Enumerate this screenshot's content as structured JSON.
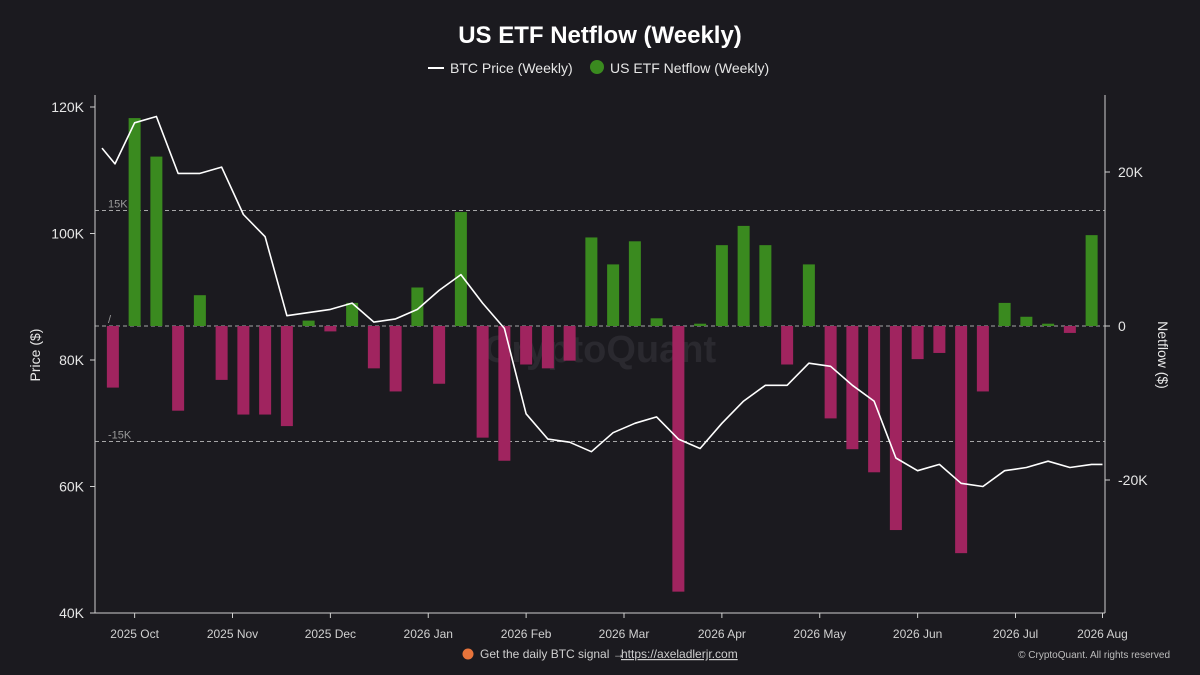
{
  "colors": {
    "background": "#1b1a1f",
    "inflow": "#3a8a1f",
    "outflow": "#a0245f",
    "price_line": "#ffffff",
    "ref_line": "#bfbfbf",
    "footer_dot": "#e8743b"
  },
  "footer": {
    "signal_text": "Get the daily BTC signal →",
    "signal_link": "https://axeladlerjr.com",
    "copyright": "© CryptoQuant. All rights reserved"
  },
  "watermark": "CryptoQuant",
  "chart_data": {
    "type": "bar",
    "title": "US ETF Netflow (Weekly)",
    "legend": {
      "placement": "top-center",
      "entries": [
        {
          "label": "BTC Price (Weekly)",
          "marker": "line",
          "color": "#ffffff"
        },
        {
          "label": "US ETF Netflow (Weekly)",
          "marker": "dot",
          "color": "#3a8a1f"
        }
      ]
    },
    "x_axis": {
      "ticks": [
        "2025 Oct",
        "2025 Nov",
        "2025 Dec",
        "2026 Jan",
        "2026 Feb",
        "2026 Mar",
        "2026 Apr",
        "2026 May",
        "2026 Jun",
        "2026 Jul",
        "2026 Aug"
      ],
      "tick_week_index": [
        1.5,
        6,
        10.5,
        15,
        19.5,
        24,
        28.5,
        33,
        37.5,
        42,
        46
      ]
    },
    "y_left": {
      "label": "Price ($)",
      "min": 40000,
      "max": 120000,
      "ticks": [
        40000,
        60000,
        80000,
        100000,
        120000
      ],
      "tick_labels": [
        "40K",
        "60K",
        "80K",
        "100K",
        "120K"
      ]
    },
    "y_right": {
      "label": "Netflow ($)",
      "min": -37000,
      "max": 30000,
      "ticks": [
        -20000,
        0,
        20000
      ],
      "tick_labels": [
        "-20K",
        "0",
        "20K"
      ]
    },
    "reference_lines": [
      {
        "value": 15000,
        "label": "15K"
      },
      {
        "value": 0,
        "label": "/"
      },
      {
        "value": -15000,
        "label": "-15K"
      }
    ],
    "grid": false,
    "netflow_series": {
      "name": "US ETF Netflow (Weekly)",
      "axis": "right",
      "values": [
        -8000,
        27000,
        22000,
        -11000,
        4000,
        -7000,
        -11500,
        -11500,
        -13000,
        700,
        -700,
        3000,
        -5500,
        -8500,
        5000,
        -7500,
        14800,
        -14500,
        -17500,
        -5000,
        -5500,
        -4500,
        11500,
        8000,
        11000,
        1000,
        -34500,
        300,
        10500,
        13000,
        10500,
        -5000,
        8000,
        -12000,
        -16000,
        -19000,
        -26500,
        -4300,
        -3500,
        -29500,
        -8500,
        3000,
        1200,
        300,
        -900,
        11800
      ],
      "positive_color": "#3a8a1f",
      "negative_color": "#a0245f"
    },
    "price_series": {
      "name": "BTC Price (Weekly)",
      "axis": "left",
      "x_week_index": [
        0,
        0.6,
        1.5,
        2.5,
        3.5,
        4.5,
        5.5,
        6.5,
        7.5,
        8.5,
        9.5,
        10.5,
        11.5,
        12.5,
        13.5,
        14.5,
        15.5,
        16.5,
        17.5,
        18.5,
        19.5,
        20.5,
        21.5,
        22.5,
        23.5,
        24.5,
        25.5,
        26.5,
        27.5,
        28.5,
        29.5,
        30.5,
        31.5,
        32.5,
        33.5,
        34.5,
        35.5,
        36.5,
        37.5,
        38.5,
        39.5,
        40.5,
        41.5,
        42.5,
        43.5,
        44.5,
        45.5,
        46
      ],
      "values": [
        113500,
        111000,
        117500,
        118500,
        109500,
        109500,
        110500,
        103000,
        99500,
        87000,
        87500,
        88000,
        89000,
        86000,
        86500,
        88000,
        91000,
        93500,
        89000,
        85000,
        71500,
        67500,
        67000,
        65500,
        68500,
        70000,
        71000,
        67500,
        66000,
        70000,
        73500,
        76000,
        76000,
        79500,
        79000,
        76000,
        73500,
        64500,
        62500,
        63500,
        60500,
        60000,
        62500,
        63000,
        64000,
        63000,
        63500,
        63500
      ]
    }
  }
}
